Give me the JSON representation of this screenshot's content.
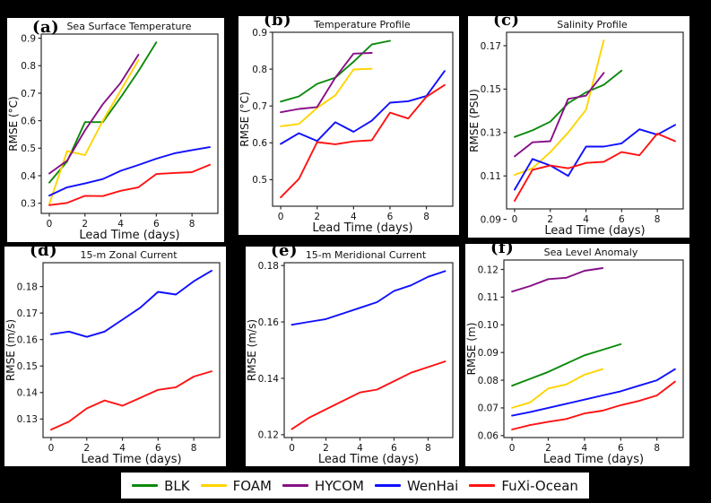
{
  "figure": {
    "background": "#000000",
    "panel_background": "#ffffff"
  },
  "legend": {
    "items": [
      {
        "label": "BLK",
        "color": "#0b8a0b"
      },
      {
        "label": "FOAM",
        "color": "#ffd400"
      },
      {
        "label": "HYCOM",
        "color": "#870f87"
      },
      {
        "label": "WenHai",
        "color": "#0f0fff"
      },
      {
        "label": "FuXi-Ocean",
        "color": "#ff1212"
      }
    ]
  },
  "chart_data": [
    {
      "type": "line",
      "panel_label": "(a)",
      "title": "Sea Surface Temperature",
      "xlabel": "Lead Time (days)",
      "ylabel": "RMSE (°C)",
      "xlim": [
        -0.45,
        9.45
      ],
      "ylim": [
        0.263,
        0.915
      ],
      "xticks": [
        "0",
        "2",
        "4",
        "6",
        "8"
      ],
      "yticks": [
        "0.3",
        "0.4",
        "0.5",
        "0.6",
        "0.7",
        "0.8",
        "0.9"
      ],
      "grid": false,
      "series": [
        {
          "name": "BLK",
          "color": "#0b8a0b",
          "x": [
            0,
            1,
            2,
            3,
            4,
            5,
            6
          ],
          "values": [
            0.375,
            0.452,
            0.595,
            0.595,
            0.685,
            0.78,
            0.885
          ]
        },
        {
          "name": "FOAM",
          "color": "#ffd400",
          "x": [
            0,
            1,
            2,
            3,
            4,
            5
          ],
          "values": [
            0.297,
            0.49,
            0.475,
            0.6,
            0.71,
            0.82
          ]
        },
        {
          "name": "HYCOM",
          "color": "#870f87",
          "x": [
            0,
            1,
            2,
            3,
            4,
            5
          ],
          "values": [
            0.408,
            0.455,
            0.565,
            0.66,
            0.738,
            0.84
          ]
        },
        {
          "name": "WenHai",
          "color": "#0f0fff",
          "x": [
            0,
            1,
            2,
            3,
            4,
            5,
            6,
            7,
            8,
            9
          ],
          "values": [
            0.328,
            0.358,
            0.372,
            0.388,
            0.418,
            0.439,
            0.462,
            0.481,
            0.493,
            0.504
          ]
        },
        {
          "name": "FuXi-Ocean",
          "color": "#ff1212",
          "x": [
            0,
            1,
            2,
            3,
            4,
            5,
            6,
            7,
            8,
            9
          ],
          "values": [
            0.293,
            0.301,
            0.327,
            0.326,
            0.345,
            0.358,
            0.406,
            0.41,
            0.413,
            0.44
          ]
        }
      ]
    },
    {
      "type": "line",
      "panel_label": "(b)",
      "title": "Temperature Profile",
      "xlabel": "Lead Time (days)",
      "ylabel": "RMSE (°C)",
      "xlim": [
        -0.45,
        9.45
      ],
      "ylim": [
        0.428,
        0.9
      ],
      "xticks": [
        "0",
        "2",
        "4",
        "6",
        "8"
      ],
      "yticks": [
        "0.5",
        "0.6",
        "0.7",
        "0.8",
        "0.9"
      ],
      "grid": false,
      "series": [
        {
          "name": "BLK",
          "color": "#0b8a0b",
          "x": [
            0,
            1,
            2,
            3,
            4,
            5,
            6
          ],
          "values": [
            0.712,
            0.726,
            0.76,
            0.777,
            0.82,
            0.867,
            0.877
          ]
        },
        {
          "name": "FOAM",
          "color": "#ffd400",
          "x": [
            0,
            1,
            2,
            3,
            4,
            5
          ],
          "values": [
            0.645,
            0.651,
            0.695,
            0.729,
            0.799,
            0.801
          ]
        },
        {
          "name": "HYCOM",
          "color": "#870f87",
          "x": [
            0,
            1,
            2,
            3,
            4,
            5
          ],
          "values": [
            0.683,
            0.692,
            0.697,
            0.777,
            0.842,
            0.844
          ]
        },
        {
          "name": "WenHai",
          "color": "#0f0fff",
          "x": [
            0,
            1,
            2,
            3,
            4,
            5,
            6,
            7,
            8,
            9
          ],
          "values": [
            0.597,
            0.626,
            0.605,
            0.656,
            0.63,
            0.66,
            0.709,
            0.713,
            0.727,
            0.795
          ]
        },
        {
          "name": "FuXi-Ocean",
          "color": "#ff1212",
          "x": [
            0,
            1,
            2,
            3,
            4,
            5,
            6,
            7,
            8,
            9
          ],
          "values": [
            0.452,
            0.502,
            0.602,
            0.596,
            0.604,
            0.607,
            0.682,
            0.666,
            0.725,
            0.757
          ]
        }
      ]
    },
    {
      "type": "line",
      "panel_label": "(c)",
      "title": "Salinity Profile",
      "xlabel": "Lead Time (days)",
      "ylabel": "RMSE (PSU)",
      "xlim": [
        -0.45,
        9.45
      ],
      "ylim": [
        0.0948,
        0.1762
      ],
      "xticks": [
        "0",
        "2",
        "4",
        "6",
        "8"
      ],
      "yticks": [
        "0.09",
        "0.11",
        "0.13",
        "0.15",
        "0.17"
      ],
      "grid": false,
      "series": [
        {
          "name": "BLK",
          "color": "#0b8a0b",
          "x": [
            0,
            1,
            2,
            3,
            4,
            5,
            6
          ],
          "values": [
            0.128,
            0.131,
            0.135,
            0.1435,
            0.1485,
            0.152,
            0.1585
          ]
        },
        {
          "name": "FOAM",
          "color": "#ffd400",
          "x": [
            0,
            1,
            2,
            3,
            4,
            5
          ],
          "values": [
            0.1105,
            0.1135,
            0.121,
            0.13,
            0.1405,
            0.1725
          ]
        },
        {
          "name": "HYCOM",
          "color": "#870f87",
          "x": [
            0,
            1,
            2,
            3,
            4,
            5
          ],
          "values": [
            0.119,
            0.1255,
            0.126,
            0.1455,
            0.147,
            0.1575
          ]
        },
        {
          "name": "WenHai",
          "color": "#0f0fff",
          "x": [
            0,
            1,
            2,
            3,
            4,
            5,
            6,
            7,
            8,
            9
          ],
          "values": [
            0.1037,
            0.1178,
            0.1148,
            0.11,
            0.1235,
            0.1235,
            0.125,
            0.1315,
            0.129,
            0.1335
          ]
        },
        {
          "name": "FuXi-Ocean",
          "color": "#ff1212",
          "x": [
            0,
            1,
            2,
            3,
            4,
            5,
            6,
            7,
            8,
            9
          ],
          "values": [
            0.0985,
            0.1128,
            0.1148,
            0.1135,
            0.116,
            0.1165,
            0.121,
            0.1195,
            0.1295,
            0.126
          ]
        }
      ]
    },
    {
      "type": "line",
      "panel_label": "(d)",
      "title": "15-m Zonal Current",
      "xlabel": "Lead Time (days)",
      "ylabel": "RMSE (m/s)",
      "xlim": [
        -0.45,
        9.45
      ],
      "ylim": [
        0.123,
        0.189
      ],
      "xticks": [
        "0",
        "2",
        "4",
        "6",
        "8"
      ],
      "yticks": [
        "0.13",
        "0.14",
        "0.15",
        "0.16",
        "0.17",
        "0.18"
      ],
      "grid": false,
      "series": [
        {
          "name": "WenHai",
          "color": "#0f0fff",
          "x": [
            0,
            1,
            2,
            3,
            4,
            5,
            6,
            7,
            8,
            9
          ],
          "values": [
            0.162,
            0.163,
            0.161,
            0.163,
            0.1675,
            0.172,
            0.178,
            0.177,
            0.182,
            0.186
          ]
        },
        {
          "name": "FuXi-Ocean",
          "color": "#ff1212",
          "x": [
            0,
            1,
            2,
            3,
            4,
            5,
            6,
            7,
            8,
            9
          ],
          "values": [
            0.126,
            0.129,
            0.134,
            0.137,
            0.135,
            0.138,
            0.141,
            0.142,
            0.146,
            0.148
          ]
        }
      ]
    },
    {
      "type": "line",
      "panel_label": "(e)",
      "title": "15-m Meridional Current",
      "xlabel": "Lead Time (days)",
      "ylabel": "RMSE (m/s)",
      "xlim": [
        -0.45,
        9.45
      ],
      "ylim": [
        0.119,
        0.181
      ],
      "xticks": [
        "0",
        "2",
        "4",
        "6",
        "8"
      ],
      "yticks": [
        "0.12",
        "0.14",
        "0.16",
        "0.18"
      ],
      "grid": false,
      "series": [
        {
          "name": "WenHai",
          "color": "#0f0fff",
          "x": [
            0,
            1,
            2,
            3,
            4,
            5,
            6,
            7,
            8,
            9
          ],
          "values": [
            0.159,
            0.16,
            0.161,
            0.163,
            0.165,
            0.167,
            0.171,
            0.173,
            0.176,
            0.178
          ]
        },
        {
          "name": "FuXi-Ocean",
          "color": "#ff1212",
          "x": [
            0,
            1,
            2,
            3,
            4,
            5,
            6,
            7,
            8,
            9
          ],
          "values": [
            0.122,
            0.126,
            0.129,
            0.132,
            0.135,
            0.136,
            0.139,
            0.142,
            0.144,
            0.146
          ]
        }
      ]
    },
    {
      "type": "line",
      "panel_label": "(f)",
      "title": "Sea Level Anomaly",
      "xlabel": "Lead Time (days)",
      "ylabel": "RMSE (m)",
      "xlim": [
        -0.45,
        9.45
      ],
      "ylim": [
        0.0593,
        0.1234
      ],
      "xticks": [
        "0",
        "2",
        "4",
        "6",
        "8"
      ],
      "yticks": [
        "0.06",
        "0.07",
        "0.08",
        "0.09",
        "0.10",
        "0.11",
        "0.12"
      ],
      "grid": false,
      "series": [
        {
          "name": "BLK",
          "color": "#0b8a0b",
          "x": [
            0,
            1,
            2,
            3,
            4,
            5,
            6
          ],
          "values": [
            0.078,
            0.0805,
            0.083,
            0.086,
            0.089,
            0.091,
            0.093
          ]
        },
        {
          "name": "FOAM",
          "color": "#ffd400",
          "x": [
            0,
            1,
            2,
            3,
            4,
            5
          ],
          "values": [
            0.07,
            0.072,
            0.077,
            0.0785,
            0.082,
            0.084
          ]
        },
        {
          "name": "HYCOM",
          "color": "#870f87",
          "x": [
            0,
            1,
            2,
            3,
            4,
            5
          ],
          "values": [
            0.112,
            0.114,
            0.1165,
            0.117,
            0.1195,
            0.1205
          ]
        },
        {
          "name": "WenHai",
          "color": "#0f0fff",
          "x": [
            0,
            1,
            2,
            3,
            4,
            5,
            6,
            7,
            8,
            9
          ],
          "values": [
            0.0672,
            0.0685,
            0.07,
            0.0715,
            0.073,
            0.0745,
            0.076,
            0.078,
            0.08,
            0.084
          ]
        },
        {
          "name": "FuXi-Ocean",
          "color": "#ff1212",
          "x": [
            0,
            1,
            2,
            3,
            4,
            5,
            6,
            7,
            8,
            9
          ],
          "values": [
            0.0622,
            0.0638,
            0.065,
            0.066,
            0.068,
            0.069,
            0.071,
            0.0725,
            0.0745,
            0.0795
          ]
        }
      ]
    }
  ]
}
